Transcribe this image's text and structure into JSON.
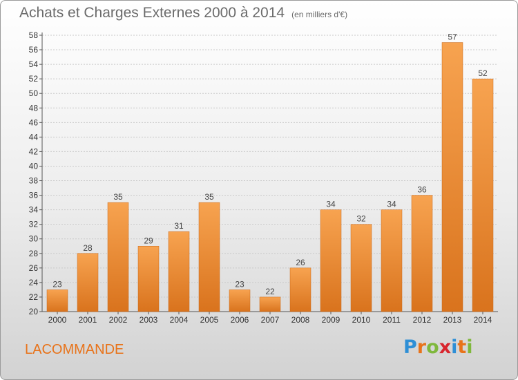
{
  "header": {
    "title": "Achats et Charges Externes 2000 à 2014",
    "unit": "(en milliers d'€)"
  },
  "footer": {
    "commune": "LACOMMANDE",
    "logo": {
      "chars": [
        "P",
        "r",
        "o",
        "x",
        "i",
        "t",
        "i"
      ],
      "colors": [
        "#2e8fd6",
        "#e8731a",
        "#7fb83c",
        "#d8262e",
        "#2e8fd6",
        "#e8731a",
        "#7fb83c"
      ]
    }
  },
  "chart_data": {
    "type": "bar",
    "categories": [
      "2000",
      "2001",
      "2002",
      "2003",
      "2004",
      "2005",
      "2006",
      "2007",
      "2008",
      "2009",
      "2010",
      "2011",
      "2012",
      "2013",
      "2014"
    ],
    "values": [
      23,
      28,
      35,
      29,
      31,
      35,
      23,
      22,
      26,
      34,
      32,
      34,
      36,
      57,
      52
    ],
    "ylim": [
      20,
      58
    ],
    "yticks": [
      20,
      22,
      24,
      26,
      28,
      30,
      32,
      34,
      36,
      38,
      40,
      42,
      44,
      46,
      48,
      50,
      52,
      54,
      56,
      58
    ],
    "grid": true,
    "bar_color_top": "#f7a350",
    "bar_color_bottom": "#d9731d"
  }
}
